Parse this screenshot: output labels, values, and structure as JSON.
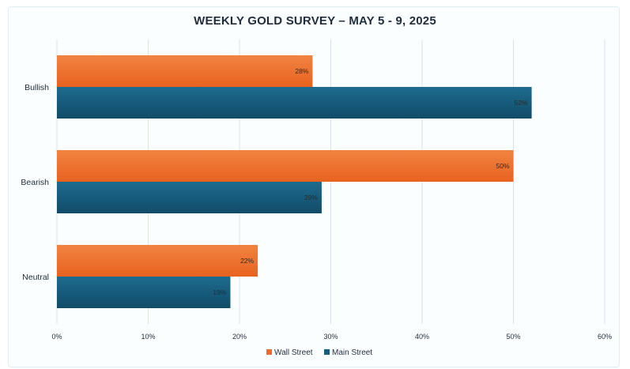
{
  "chart_data": {
    "type": "bar",
    "orientation": "horizontal",
    "title": "WEEKLY GOLD SURVEY – MAY 5 - 9, 2025",
    "categories": [
      "Bullish",
      "Bearish",
      "Neutral"
    ],
    "series": [
      {
        "name": "Wall Street",
        "values": [
          28,
          50,
          22
        ],
        "color": "#ee6a2b"
      },
      {
        "name": "Main Street",
        "values": [
          52,
          29,
          19
        ],
        "color": "#175c7c"
      }
    ],
    "value_suffix": "%",
    "xlim": [
      0,
      60
    ],
    "xticks": [
      0,
      10,
      20,
      30,
      40,
      50,
      60
    ],
    "xtick_labels": [
      "0%",
      "10%",
      "20%",
      "30%",
      "40%",
      "50%",
      "60%"
    ],
    "grid": true,
    "legend_position": "bottom"
  }
}
